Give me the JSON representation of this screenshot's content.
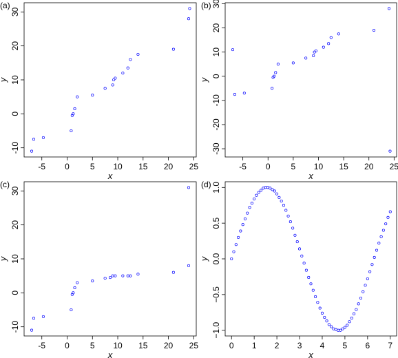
{
  "chart_data": [
    {
      "type": "scatter",
      "title": "(a)",
      "x_label": "x",
      "y_label": "y",
      "color": "#0000ff",
      "x": [
        -7,
        -6.6,
        -4.7,
        0.8,
        1,
        1.2,
        1.5,
        2,
        5,
        7.5,
        9,
        9.2,
        9.5,
        11,
        12,
        12.5,
        14,
        21,
        24,
        24.2
      ],
      "y": [
        -11,
        -7.5,
        -7,
        -5,
        -0.5,
        0,
        1.5,
        5,
        5.5,
        7.5,
        8.5,
        10,
        10.5,
        12,
        13.5,
        16,
        17.5,
        19,
        28,
        31
      ],
      "xlim": [
        -8.5,
        25.5
      ],
      "xticks": [
        -5,
        0,
        5,
        10,
        15,
        20,
        25
      ],
      "ylim": [
        -12.7,
        32.7
      ],
      "yticks": [
        -10,
        0,
        10,
        20,
        30
      ]
    },
    {
      "type": "scatter",
      "title": "(b)",
      "x_label": "x",
      "y_label": "y",
      "color": "#0000ff",
      "x": [
        -7,
        -6.6,
        -4.7,
        0.8,
        1,
        1.2,
        1.5,
        2,
        5,
        7.5,
        9,
        9.2,
        9.5,
        11,
        12,
        12.5,
        14,
        21,
        24,
        24.2
      ],
      "y": [
        11,
        -7.5,
        -7,
        -5,
        -0.5,
        0,
        1.5,
        5,
        5.5,
        7.5,
        8.5,
        10,
        10.5,
        12,
        13.5,
        16,
        17.5,
        19,
        28,
        -31
      ],
      "xlim": [
        -8.5,
        25.5
      ],
      "xticks": [
        -5,
        0,
        5,
        10,
        15,
        20,
        25
      ],
      "ylim": [
        -33.4,
        30.4
      ],
      "yticks": [
        -30,
        -20,
        -10,
        0,
        10,
        20,
        30
      ]
    },
    {
      "type": "scatter",
      "title": "(c)",
      "x_label": "x",
      "y_label": "y",
      "color": "#0000ff",
      "x": [
        -7,
        -6.6,
        -4.7,
        0.8,
        1,
        1.2,
        1.5,
        2,
        5,
        7.5,
        8.5,
        9,
        9.5,
        11,
        12,
        12.5,
        14,
        21,
        24,
        24
      ],
      "y": [
        -11,
        -7.5,
        -7,
        -5,
        -0.5,
        0,
        1.5,
        3,
        3.5,
        4.3,
        4.5,
        5,
        5,
        5,
        5,
        5,
        5.5,
        6,
        8,
        31
      ],
      "xlim": [
        -8.5,
        25.5
      ],
      "xticks": [
        -5,
        0,
        5,
        10,
        15,
        20,
        25
      ],
      "ylim": [
        -12.7,
        32.7
      ],
      "yticks": [
        -10,
        0,
        10,
        20,
        30
      ]
    },
    {
      "type": "scatter",
      "title": "(d)",
      "x_label": "x",
      "y_label": "y",
      "color": "#0000ff",
      "x": [
        0,
        0.1,
        0.2,
        0.3,
        0.4,
        0.5,
        0.6,
        0.7,
        0.8,
        0.9,
        1,
        1.1,
        1.2,
        1.3,
        1.4,
        1.5,
        1.6,
        1.7,
        1.8,
        1.9,
        2,
        2.1,
        2.2,
        2.3,
        2.4,
        2.5,
        2.6,
        2.7,
        2.8,
        2.9,
        3,
        3.1,
        3.2,
        3.3,
        3.4,
        3.5,
        3.6,
        3.7,
        3.8,
        3.9,
        4,
        4.1,
        4.2,
        4.3,
        4.4,
        4.5,
        4.6,
        4.7,
        4.8,
        4.9,
        5,
        5.1,
        5.2,
        5.3,
        5.4,
        5.5,
        5.6,
        5.7,
        5.8,
        5.9,
        6,
        6.1,
        6.2,
        6.3,
        6.4,
        6.5,
        6.6,
        6.7,
        6.8,
        6.9,
        7
      ],
      "y": [
        0,
        0.1,
        0.2,
        0.3,
        0.39,
        0.48,
        0.56,
        0.64,
        0.72,
        0.78,
        0.84,
        0.89,
        0.93,
        0.96,
        0.99,
        1,
        1,
        0.99,
        0.97,
        0.95,
        0.91,
        0.86,
        0.81,
        0.75,
        0.68,
        0.6,
        0.52,
        0.43,
        0.33,
        0.24,
        0.14,
        0.04,
        -0.06,
        -0.16,
        -0.26,
        -0.35,
        -0.44,
        -0.53,
        -0.61,
        -0.69,
        -0.76,
        -0.82,
        -0.87,
        -0.92,
        -0.95,
        -0.98,
        -0.99,
        -1,
        -1,
        -0.98,
        -0.96,
        -0.93,
        -0.88,
        -0.83,
        -0.77,
        -0.71,
        -0.63,
        -0.55,
        -0.46,
        -0.37,
        -0.28,
        -0.18,
        -0.08,
        0.02,
        0.12,
        0.22,
        0.31,
        0.4,
        0.49,
        0.58,
        0.66
      ],
      "xlim": [
        -0.28,
        7.28
      ],
      "xticks": [
        0,
        1,
        2,
        3,
        4,
        5,
        6,
        7
      ],
      "ylim": [
        -1.08,
        1.08
      ],
      "yticks": [
        {
          "value": -1,
          "label": "−1.0"
        },
        {
          "value": -0.5,
          "label": "−0.5"
        },
        {
          "value": 0,
          "label": "0.0"
        },
        {
          "value": 0.5,
          "label": "0.5"
        },
        {
          "value": 1,
          "label": "1.0"
        }
      ]
    }
  ]
}
